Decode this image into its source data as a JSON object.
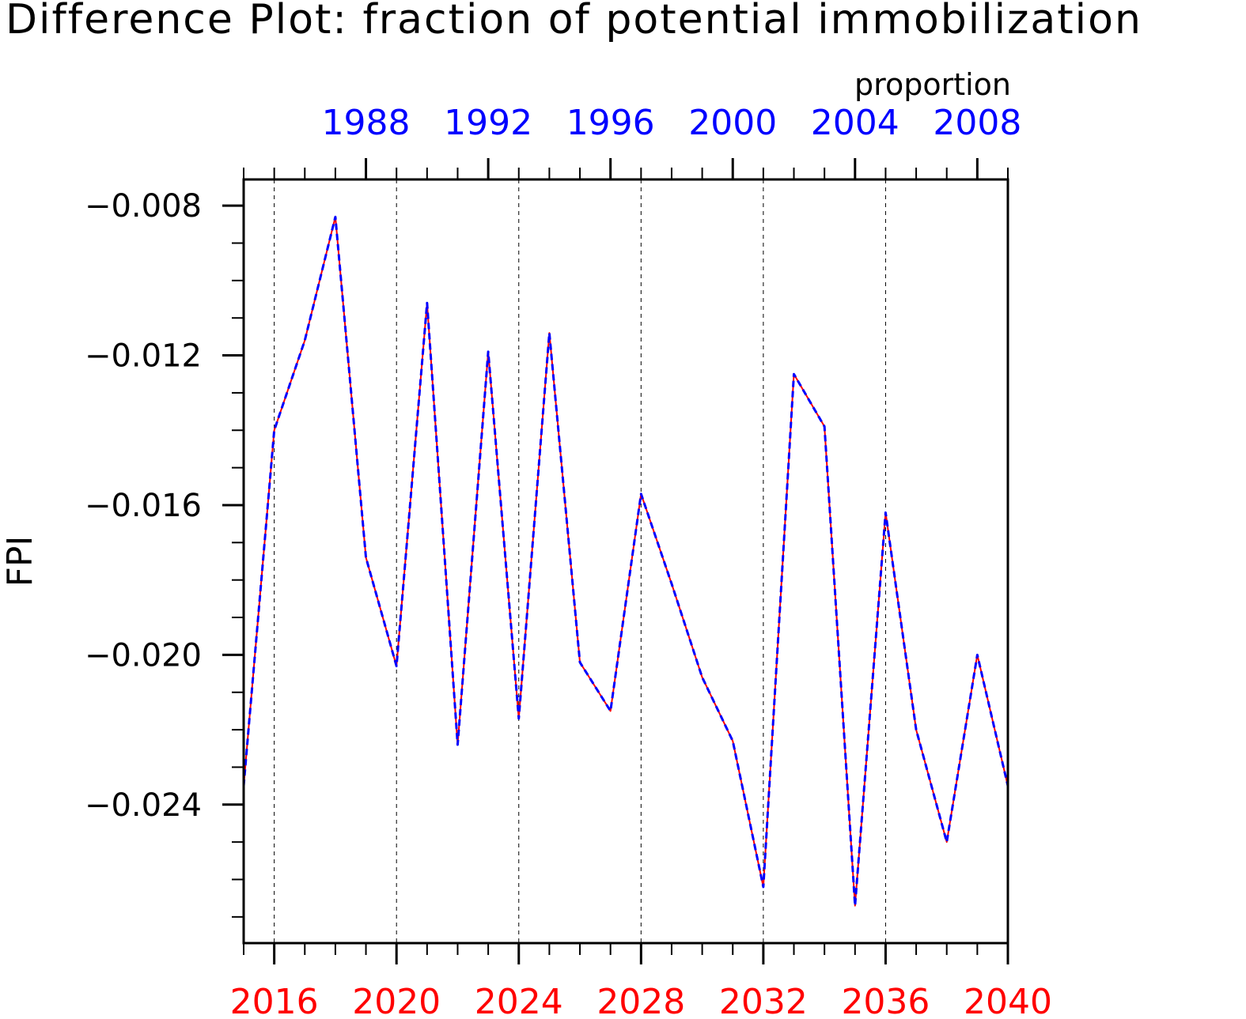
{
  "chart_data": {
    "type": "line",
    "title": "Difference Plot: fraction of potential immobilization",
    "ylabel": "FPI",
    "units_label": "proportion",
    "x": [
      2015,
      2016,
      2017,
      2018,
      2019,
      2020,
      2021,
      2022,
      2023,
      2024,
      2025,
      2026,
      2027,
      2028,
      2029,
      2030,
      2031,
      2032,
      2033,
      2034,
      2035,
      2036,
      2037,
      2038,
      2039,
      2040
    ],
    "x_top": [
      1984,
      1985,
      1986,
      1987,
      1988,
      1989,
      1990,
      1991,
      1992,
      1993,
      1994,
      1995,
      1996,
      1997,
      1998,
      1999,
      2000,
      2001,
      2002,
      2003,
      2004,
      2005,
      2006,
      2007,
      2008,
      2009
    ],
    "xlim": [
      2015,
      2040
    ],
    "xlim_top": [
      1984,
      2009
    ],
    "ylim": [
      -0.0277,
      -0.0073
    ],
    "bottom_tick_labels": [
      "2016",
      "2020",
      "2024",
      "2028",
      "2032",
      "2036",
      "2040"
    ],
    "top_tick_labels": [
      "1988",
      "1992",
      "1996",
      "2000",
      "2004",
      "2008"
    ],
    "y_tick_labels": [
      "−0.008",
      "−0.012",
      "−0.016",
      "−0.020",
      "−0.024"
    ],
    "y_tick_values": [
      -0.008,
      -0.012,
      -0.016,
      -0.02,
      -0.024
    ],
    "y_minor_ticks": [
      -0.027,
      -0.026,
      -0.025,
      -0.024,
      -0.023,
      -0.022,
      -0.021,
      -0.02,
      -0.019,
      -0.018,
      -0.017,
      -0.016,
      -0.015,
      -0.014,
      -0.013,
      -0.012,
      -0.011,
      -0.01,
      -0.009,
      -0.008
    ],
    "vertical_gridlines_at": [
      2016,
      2020,
      2024,
      2028,
      2032,
      2036
    ],
    "series": [
      {
        "values": [
          -0.0235,
          -0.014,
          -0.0116,
          -0.0083,
          -0.0174,
          -0.0203,
          -0.0106,
          -0.0224,
          -0.0119,
          -0.0217,
          -0.0114,
          -0.0202,
          -0.0215,
          -0.0157,
          -0.0181,
          -0.0206,
          -0.0223,
          -0.0262,
          -0.0125,
          -0.0139,
          -0.0267,
          -0.0162,
          -0.022,
          -0.025,
          -0.02,
          -0.0235
        ],
        "color": "#ff0000",
        "style": "solid"
      },
      {
        "values": [
          -0.0235,
          -0.014,
          -0.0116,
          -0.0083,
          -0.0174,
          -0.0203,
          -0.0106,
          -0.0224,
          -0.0119,
          -0.0217,
          -0.0114,
          -0.0202,
          -0.0215,
          -0.0157,
          -0.0181,
          -0.0206,
          -0.0223,
          -0.0262,
          -0.0125,
          -0.0139,
          -0.0267,
          -0.0162,
          -0.022,
          -0.025,
          -0.02,
          -0.0235
        ],
        "color": "#0000ff",
        "style": "dashed"
      }
    ],
    "colors": {
      "bottom_axis_labels": "#ff0000",
      "top_axis_labels": "#0000ff",
      "frame": "#000000",
      "grid": "#000000"
    },
    "grid": "vertical-dashed"
  }
}
